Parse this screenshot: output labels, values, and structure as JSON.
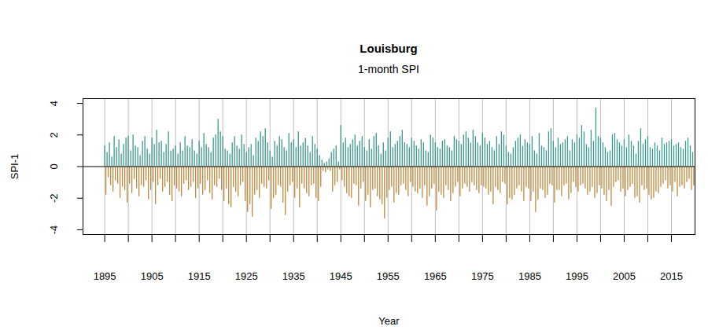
{
  "chart_data": {
    "type": "bar",
    "title": "Louisburg",
    "subtitle": "1-month SPI",
    "x_label": "Year",
    "y_label": "SPI-1",
    "xlim": [
      1890.4,
      2020
    ],
    "ylim": [
      -4.3,
      4.3
    ],
    "xticks": [
      1895,
      {
        "value": 1900,
        "label": null
      },
      1905,
      {
        "value": 1910,
        "label": null
      },
      1915,
      {
        "value": 1920,
        "label": null
      },
      1925,
      {
        "value": 1930,
        "label": null
      },
      1935,
      {
        "value": 1940,
        "label": null
      },
      1945,
      {
        "value": 1950,
        "label": null
      },
      1955,
      {
        "value": 1960,
        "label": null
      },
      1965,
      {
        "value": 1970,
        "label": null
      },
      1975,
      {
        "value": 1980,
        "label": null
      },
      1985,
      {
        "value": 1990,
        "label": null
      },
      1995,
      {
        "value": 2000,
        "label": null
      },
      2005,
      {
        "value": 2010,
        "label": null
      },
      2015
    ],
    "yticks": [
      -4,
      -2,
      0,
      2,
      4
    ],
    "grid": true,
    "colors": [
      "#3a9a8f",
      "#c1883b"
    ],
    "x": [
      1895,
      1895.25,
      1895.5,
      1895.75,
      1896,
      1896.25,
      1896.5,
      1896.75,
      1897,
      1897.25,
      1897.5,
      1897.75,
      1898,
      1898.25,
      1898.5,
      1898.75,
      1899,
      1899.25,
      1899.5,
      1899.75,
      1900,
      1900.25,
      1900.5,
      1900.75,
      1901,
      1901.25,
      1901.5,
      1901.75,
      1902,
      1902.25,
      1902.5,
      1902.75,
      1903,
      1903.25,
      1903.5,
      1903.75,
      1904,
      1904.25,
      1904.5,
      1904.75,
      1905,
      1905.25,
      1905.5,
      1905.75,
      1906,
      1906.25,
      1906.5,
      1906.75,
      1907,
      1907.25,
      1907.5,
      1907.75,
      1908,
      1908.25,
      1908.5,
      1908.75,
      1909,
      1909.25,
      1909.5,
      1909.75,
      1910,
      1910.25,
      1910.5,
      1910.75,
      1911,
      1911.25,
      1911.5,
      1911.75,
      1912,
      1912.25,
      1912.5,
      1912.75,
      1913,
      1913.25,
      1913.5,
      1913.75,
      1914,
      1914.25,
      1914.5,
      1914.75,
      1915,
      1915.25,
      1915.5,
      1915.75,
      1916,
      1916.25,
      1916.5,
      1916.75,
      1917,
      1917.25,
      1917.5,
      1917.75,
      1918,
      1918.25,
      1918.5,
      1918.75,
      1919,
      1919.25,
      1919.5,
      1919.75,
      1920,
      1920.25,
      1920.5,
      1920.75,
      1921,
      1921.25,
      1921.5,
      1921.75,
      1922,
      1922.25,
      1922.5,
      1922.75,
      1923,
      1923.25,
      1923.5,
      1923.75,
      1924,
      1924.25,
      1924.5,
      1924.75,
      1925,
      1925.25,
      1925.5,
      1925.75,
      1926,
      1926.25,
      1926.5,
      1926.75,
      1927,
      1927.25,
      1927.5,
      1927.75,
      1928,
      1928.25,
      1928.5,
      1928.75,
      1929,
      1929.25,
      1929.5,
      1929.75,
      1930,
      1930.25,
      1930.5,
      1930.75,
      1931,
      1931.25,
      1931.5,
      1931.75,
      1932,
      1932.25,
      1932.5,
      1932.75,
      1933,
      1933.25,
      1933.5,
      1933.75,
      1934,
      1934.25,
      1934.5,
      1934.75,
      1935,
      1935.25,
      1935.5,
      1935.75,
      1936,
      1936.25,
      1936.5,
      1936.75,
      1937,
      1937.25,
      1937.5,
      1937.75,
      1938,
      1938.25,
      1938.5,
      1938.75,
      1939,
      1939.25,
      1939.5,
      1939.75,
      1940,
      1940.25,
      1940.5,
      1940.75,
      1941,
      1941.25,
      1941.5,
      1941.75,
      1942,
      1942.25,
      1942.5,
      1942.75,
      1943,
      1943.25,
      1943.5,
      1943.75,
      1944,
      1944.25,
      1944.5,
      1944.75,
      1945,
      1945.25,
      1945.5,
      1945.75,
      1946,
      1946.25,
      1946.5,
      1946.75,
      1947,
      1947.25,
      1947.5,
      1947.75,
      1948,
      1948.25,
      1948.5,
      1948.75,
      1949,
      1949.25,
      1949.5,
      1949.75,
      1950,
      1950.25,
      1950.5,
      1950.75,
      1951,
      1951.25,
      1951.5,
      1951.75,
      1952,
      1952.25,
      1952.5,
      1952.75,
      1953,
      1953.25,
      1953.5,
      1953.75,
      1954,
      1954.25,
      1954.5,
      1954.75,
      1955,
      1955.25,
      1955.5,
      1955.75,
      1956,
      1956.25,
      1956.5,
      1956.75,
      1957,
      1957.25,
      1957.5,
      1957.75,
      1958,
      1958.25,
      1958.5,
      1958.75,
      1959,
      1959.25,
      1959.5,
      1959.75,
      1960,
      1960.25,
      1960.5,
      1960.75,
      1961,
      1961.25,
      1961.5,
      1961.75,
      1962,
      1962.25,
      1962.5,
      1962.75,
      1963,
      1963.25,
      1963.5,
      1963.75,
      1964,
      1964.25,
      1964.5,
      1964.75,
      1965,
      1965.25,
      1965.5,
      1965.75,
      1966,
      1966.25,
      1966.5,
      1966.75,
      1967,
      1967.25,
      1967.5,
      1967.75,
      1968,
      1968.25,
      1968.5,
      1968.75,
      1969,
      1969.25,
      1969.5,
      1969.75,
      1970,
      1970.25,
      1970.5,
      1970.75,
      1971,
      1971.25,
      1971.5,
      1971.75,
      1972,
      1972.25,
      1972.5,
      1972.75,
      1973,
      1973.25,
      1973.5,
      1973.75,
      1974,
      1974.25,
      1974.5,
      1974.75,
      1975,
      1975.25,
      1975.5,
      1975.75,
      1976,
      1976.25,
      1976.5,
      1976.75,
      1977,
      1977.25,
      1977.5,
      1977.75,
      1978,
      1978.25,
      1978.5,
      1978.75,
      1979,
      1979.25,
      1979.5,
      1979.75,
      1980,
      1980.25,
      1980.5,
      1980.75,
      1981,
      1981.25,
      1981.5,
      1981.75,
      1982,
      1982.25,
      1982.5,
      1982.75,
      1983,
      1983.25,
      1983.5,
      1983.75,
      1984,
      1984.25,
      1984.5,
      1984.75,
      1985,
      1985.25,
      1985.5,
      1985.75,
      1986,
      1986.25,
      1986.5,
      1986.75,
      1987,
      1987.25,
      1987.5,
      1987.75,
      1988,
      1988.25,
      1988.5,
      1988.75,
      1989,
      1989.25,
      1989.5,
      1989.75,
      1990,
      1990.25,
      1990.5,
      1990.75,
      1991,
      1991.25,
      1991.5,
      1991.75,
      1992,
      1992.25,
      1992.5,
      1992.75,
      1993,
      1993.25,
      1993.5,
      1993.75,
      1994,
      1994.25,
      1994.5,
      1994.75,
      1995,
      1995.25,
      1995.5,
      1995.75,
      1996,
      1996.25,
      1996.5,
      1996.75,
      1997,
      1997.25,
      1997.5,
      1997.75,
      1998,
      1998.25,
      1998.5,
      1998.75,
      1999,
      1999.25,
      1999.5,
      1999.75,
      2000,
      2000.25,
      2000.5,
      2000.75,
      2001,
      2001.25,
      2001.5,
      2001.75,
      2002,
      2002.25,
      2002.5,
      2002.75,
      2003,
      2003.25,
      2003.5,
      2003.75,
      2004,
      2004.25,
      2004.5,
      2004.75,
      2005,
      2005.25,
      2005.5,
      2005.75,
      2006,
      2006.25,
      2006.5,
      2006.75,
      2007,
      2007.25,
      2007.5,
      2007.75,
      2008,
      2008.25,
      2008.5,
      2008.75,
      2009,
      2009.25,
      2009.5,
      2009.75,
      2010,
      2010.25,
      2010.5,
      2010.75,
      2011,
      2011.25,
      2011.5,
      2011.75,
      2012,
      2012.25,
      2012.5,
      2012.75,
      2013,
      2013.25,
      2013.5,
      2013.75,
      2014,
      2014.25,
      2014.5,
      2014.75,
      2015,
      2015.25,
      2015.5,
      2015.75,
      2016,
      2016.25,
      2016.5,
      2016.75,
      2017,
      2017.25,
      2017.5,
      2017.75,
      2018,
      2018.25,
      2018.5,
      2018.75,
      2019,
      2019.25,
      2019.5,
      2019.75
    ],
    "values": [
      1.3,
      -1.8,
      0.9,
      -0.7,
      1.5,
      -1.2,
      0.6,
      -1.6,
      1.9,
      -0.9,
      1.2,
      -1.1,
      1.7,
      -2.0,
      0.8,
      -1.3,
      1.4,
      -1.5,
      1.8,
      -2.3,
      1.9,
      -1.1,
      1.0,
      -1.7,
      2.0,
      -0.8,
      1.3,
      -1.4,
      1.2,
      -1.9,
      0.7,
      -1.2,
      1.6,
      -1.3,
      1.9,
      -0.9,
      1.1,
      -2.1,
      0.8,
      -1.5,
      1.8,
      -1.0,
      1.4,
      -2.4,
      2.3,
      -1.2,
      1.5,
      -0.8,
      1.6,
      -1.6,
      0.9,
      -1.3,
      1.4,
      -1.0,
      2.2,
      -1.8,
      1.0,
      -2.2,
      1.1,
      -1.2,
      1.3,
      -1.4,
      0.8,
      -1.6,
      1.5,
      -1.9,
      1.0,
      -1.1,
      1.9,
      -0.9,
      1.3,
      -1.5,
      1.2,
      -1.3,
      1.7,
      -1.0,
      1.0,
      -2.0,
      0.8,
      -1.4,
      1.6,
      -1.1,
      1.2,
      -1.8,
      2.1,
      -1.5,
      1.4,
      -0.9,
      1.2,
      -1.7,
      0.9,
      -2.1,
      1.8,
      -1.2,
      2.0,
      -1.3,
      3.0,
      -0.8,
      2.2,
      -1.5,
      1.9,
      -2.2,
      1.1,
      -1.4,
      1.0,
      -2.4,
      0.8,
      -2.6,
      1.5,
      -1.3,
      1.9,
      -1.6,
      1.3,
      -1.9,
      1.1,
      -1.2,
      2.0,
      -1.0,
      1.4,
      -2.2,
      0.9,
      -2.9,
      1.2,
      -2.4,
      1.4,
      -3.2,
      0.7,
      -1.8,
      1.8,
      -1.5,
      1.6,
      -2.0,
      2.2,
      -1.1,
      1.9,
      -1.3,
      2.4,
      -1.4,
      1.5,
      -0.9,
      1.0,
      -2.7,
      0.6,
      -2.0,
      1.6,
      -1.8,
      1.3,
      -1.2,
      1.9,
      -1.3,
      1.7,
      -2.3,
      1.2,
      -3.1,
      1.0,
      -1.6,
      2.1,
      -1.2,
      1.5,
      -1.0,
      1.7,
      -2.0,
      1.2,
      -1.4,
      2.2,
      -2.6,
      1.3,
      -1.1,
      1.5,
      -1.4,
      1.8,
      -1.7,
      1.3,
      -1.9,
      0.9,
      -1.2,
      1.9,
      -1.1,
      1.4,
      -2.0,
      1.1,
      -2.2,
      0.7,
      -1.3,
      0.4,
      -0.3,
      0.2,
      -0.4,
      0.3,
      -0.2,
      0.5,
      -0.3,
      0.9,
      -1.6,
      1.1,
      -1.2,
      1.3,
      -1.0,
      0.3,
      -0.2,
      2.6,
      -0.9,
      1.5,
      -1.3,
      1.8,
      -1.7,
      1.2,
      -1.9,
      1.4,
      -2.0,
      1.7,
      -1.1,
      2.0,
      -1.2,
      1.3,
      -2.5,
      1.6,
      -1.4,
      1.9,
      -1.0,
      1.2,
      -2.2,
      1.0,
      -1.8,
      1.7,
      -2.6,
      1.1,
      -1.5,
      1.9,
      -1.4,
      2.1,
      -1.9,
      1.3,
      -2.1,
      0.8,
      -2.4,
      1.5,
      -3.3,
      1.0,
      -2.0,
      1.8,
      -1.5,
      2.2,
      -1.3,
      1.2,
      -2.3,
      1.4,
      -1.7,
      1.6,
      -1.8,
      1.9,
      -1.2,
      2.3,
      -1.1,
      1.5,
      -1.5,
      1.4,
      -1.9,
      1.2,
      -1.0,
      1.8,
      -1.3,
      1.6,
      -1.6,
      1.3,
      -1.7,
      1.1,
      -1.4,
      1.7,
      -2.0,
      1.5,
      -1.2,
      1.0,
      -2.5,
      0.9,
      -1.9,
      2.0,
      -1.4,
      1.8,
      -1.1,
      1.5,
      -2.8,
      1.2,
      -1.6,
      1.1,
      -1.8,
      1.6,
      -2.0,
      1.7,
      -1.2,
      1.3,
      -1.5,
      1.2,
      -2.2,
      1.0,
      -1.7,
      1.9,
      -1.3,
      1.7,
      -1.0,
      1.6,
      -1.9,
      1.4,
      -1.4,
      2.0,
      -1.1,
      2.2,
      -1.3,
      1.8,
      -1.6,
      1.5,
      -1.0,
      2.3,
      -1.2,
      1.9,
      -1.5,
      1.5,
      -1.7,
      1.3,
      -1.2,
      2.1,
      -1.3,
      1.8,
      -1.4,
      1.4,
      -1.8,
      1.6,
      -1.6,
      1.2,
      -2.4,
      1.0,
      -1.3,
      1.9,
      -1.5,
      1.4,
      -1.7,
      2.2,
      -1.0,
      2.0,
      -1.1,
      1.3,
      -2.4,
      0.9,
      -2.0,
      0.8,
      -2.1,
      1.2,
      -1.8,
      1.6,
      -1.4,
      1.8,
      -1.2,
      2.0,
      -1.6,
      1.3,
      -2.2,
      1.7,
      -1.3,
      1.5,
      -1.4,
      1.4,
      -2.2,
      1.9,
      -1.6,
      1.0,
      -2.9,
      0.8,
      -2.1,
      2.1,
      -1.4,
      1.3,
      -1.5,
      1.2,
      -2.0,
      1.0,
      -1.8,
      2.2,
      -1.1,
      2.4,
      -1.2,
      1.6,
      -2.3,
      1.2,
      -1.5,
      1.8,
      -1.5,
      1.4,
      -1.9,
      1.5,
      -1.2,
      1.7,
      -1.1,
      1.9,
      -2.1,
      1.0,
      -1.7,
      1.7,
      -1.0,
      1.5,
      -1.3,
      2.0,
      -1.6,
      1.8,
      -1.2,
      2.6,
      -1.1,
      2.2,
      -1.4,
      1.4,
      -1.8,
      1.2,
      -1.6,
      2.3,
      -1.3,
      1.6,
      -2.0,
      3.7,
      -1.7,
      1.9,
      -1.2,
      1.8,
      -1.4,
      1.5,
      -1.8,
      1.2,
      -2.2,
      0.9,
      -1.5,
      1.0,
      -2.5,
      2.0,
      -1.3,
      2.1,
      -1.0,
      1.7,
      -0.9,
      1.5,
      -1.6,
      1.3,
      -1.4,
      1.7,
      -1.9,
      1.2,
      -1.5,
      2.0,
      -1.3,
      1.6,
      -1.1,
      1.3,
      -2.0,
      0.8,
      -1.9,
      1.6,
      -2.3,
      2.4,
      -1.2,
      1.4,
      -1.5,
      1.7,
      -1.4,
      1.9,
      -1.8,
      1.2,
      -2.1,
      1.1,
      -2.0,
      1.5,
      -1.6,
      1.3,
      -1.7,
      1.0,
      -1.3,
      1.8,
      -1.1,
      1.4,
      -0.9,
      1.5,
      -1.4,
      1.6,
      -1.2,
      1.7,
      -1.6,
      1.3,
      -1.0,
      1.4,
      -1.9,
      1.5,
      -1.3,
      1.2,
      -1.2,
      1.1,
      -1.4,
      1.6,
      -1.0,
      1.8,
      -0.8,
      1.3,
      -1.5,
      0.9,
      -1.2
    ]
  }
}
